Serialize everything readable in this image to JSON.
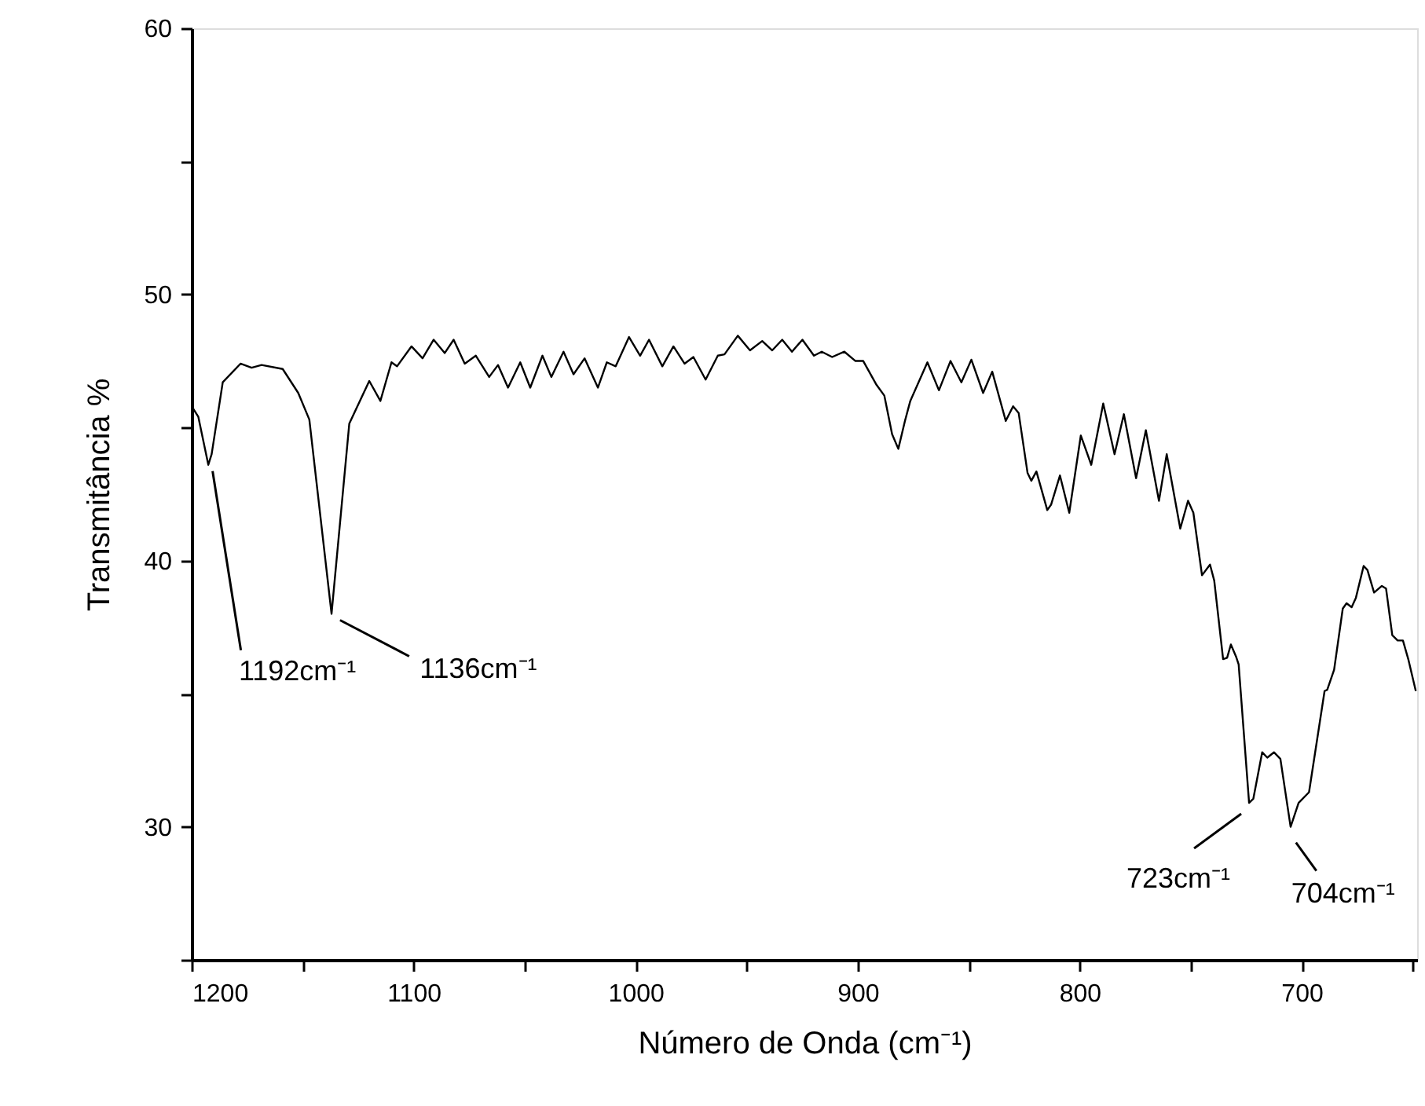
{
  "chart_data": {
    "type": "line",
    "xlabel": "Número de Onda (cm⁻¹)",
    "ylabel": "Transmitância %",
    "xlim": [
      1200,
      648
    ],
    "ylim": [
      25,
      60
    ],
    "xticks": [
      1200,
      {
        "value": 1150,
        "label": null
      },
      1100,
      {
        "value": 1050,
        "label": null
      },
      1000,
      {
        "value": 950,
        "label": null
      },
      900,
      {
        "value": 850,
        "label": null
      },
      800,
      {
        "value": 750,
        "label": null
      },
      700,
      {
        "value": 650,
        "label": null
      }
    ],
    "yticks": [
      {
        "value": 25,
        "label": null
      },
      30,
      {
        "value": 35,
        "label": null
      },
      40,
      {
        "value": 45,
        "label": null
      },
      50,
      {
        "value": 55,
        "label": null
      },
      60
    ],
    "grid": false,
    "line_style": "solid",
    "series": [
      {
        "color": "#000000",
        "x": [
          1200,
          1197,
          1192.5,
          1191,
          1186,
          1178,
          1173,
          1168.5,
          1159,
          1152,
          1147,
          1137,
          1129,
          1120,
          1115,
          1110,
          1107.5,
          1101,
          1096,
          1091,
          1086,
          1082,
          1077,
          1072,
          1066,
          1062,
          1057.5,
          1052,
          1047.5,
          1042,
          1038,
          1032.5,
          1028,
          1023,
          1017,
          1013,
          1009,
          1003,
          998,
          994,
          988,
          983,
          978,
          974,
          968.5,
          963,
          960,
          954,
          948.5,
          943,
          938.5,
          934,
          929.6,
          924.9,
          919.7,
          916.2,
          911.5,
          906,
          901,
          897.5,
          891.5,
          888,
          884.5,
          881.7,
          878.7,
          876.3,
          868.6,
          863.4,
          858.2,
          853.3,
          848.8,
          843.5,
          839.4,
          833.3,
          830,
          827.5,
          823.5,
          821.8,
          819.5,
          814.6,
          812.9,
          808.9,
          804.7,
          799.5,
          794.8,
          789.4,
          784.3,
          780.1,
          774.6,
          770.2,
          764.3,
          760.8,
          754.7,
          751.2,
          748.8,
          744.9,
          741.3,
          739.4,
          735.4,
          733.6,
          731.9,
          729.6,
          728.4,
          723.7,
          721.8,
          717.8,
          715.5,
          712.5,
          709.6,
          705,
          701.4,
          696.7,
          689.7,
          688.5,
          685.4,
          681.5,
          679.8,
          677.5,
          675.6,
          672.1,
          670.4,
          667.4,
          663.9,
          662,
          659.2,
          656.8,
          654.4,
          652,
          648.6
        ],
        "values": [
          45.8,
          45.4,
          43.6,
          44.0,
          46.7,
          47.4,
          47.25,
          47.35,
          47.2,
          46.3,
          45.3,
          38.0,
          45.15,
          46.75,
          46.0,
          47.45,
          47.3,
          48.05,
          47.6,
          48.3,
          47.8,
          48.3,
          47.4,
          47.7,
          46.9,
          47.35,
          46.5,
          47.45,
          46.5,
          47.7,
          46.9,
          47.85,
          47.0,
          47.6,
          46.5,
          47.45,
          47.3,
          48.4,
          47.7,
          48.3,
          47.3,
          48.05,
          47.4,
          47.65,
          46.8,
          47.7,
          47.75,
          48.45,
          47.9,
          48.25,
          47.9,
          48.3,
          47.85,
          48.3,
          47.7,
          47.85,
          47.65,
          47.85,
          47.5,
          47.5,
          46.6,
          46.2,
          44.75,
          44.2,
          45.25,
          46.0,
          47.45,
          46.4,
          47.5,
          46.7,
          47.55,
          46.3,
          47.1,
          45.25,
          45.8,
          45.55,
          43.3,
          43.0,
          43.35,
          41.9,
          42.1,
          43.2,
          41.8,
          44.7,
          43.6,
          45.9,
          44.0,
          45.5,
          43.1,
          44.9,
          42.25,
          44.0,
          41.2,
          42.25,
          41.8,
          39.45,
          39.85,
          39.25,
          36.3,
          36.35,
          36.85,
          36.4,
          36.1,
          30.9,
          31.05,
          32.8,
          32.6,
          32.8,
          32.55,
          30.0,
          30.9,
          31.3,
          35.1,
          35.15,
          35.9,
          38.2,
          38.4,
          38.25,
          38.6,
          39.8,
          39.65,
          38.8,
          39.05,
          38.95,
          37.2,
          37.0,
          37.0,
          36.3,
          35.1
        ]
      }
    ],
    "annotations": [
      {
        "text": "1192cm⁻¹",
        "x": 1192,
        "y": 43.6
      },
      {
        "text": "1136cm⁻¹",
        "x": 1136,
        "y": 38.0
      },
      {
        "text": "723cm⁻¹",
        "x": 723,
        "y": 30.9
      },
      {
        "text": "704cm⁻¹",
        "x": 704,
        "y": 30.0
      }
    ]
  }
}
